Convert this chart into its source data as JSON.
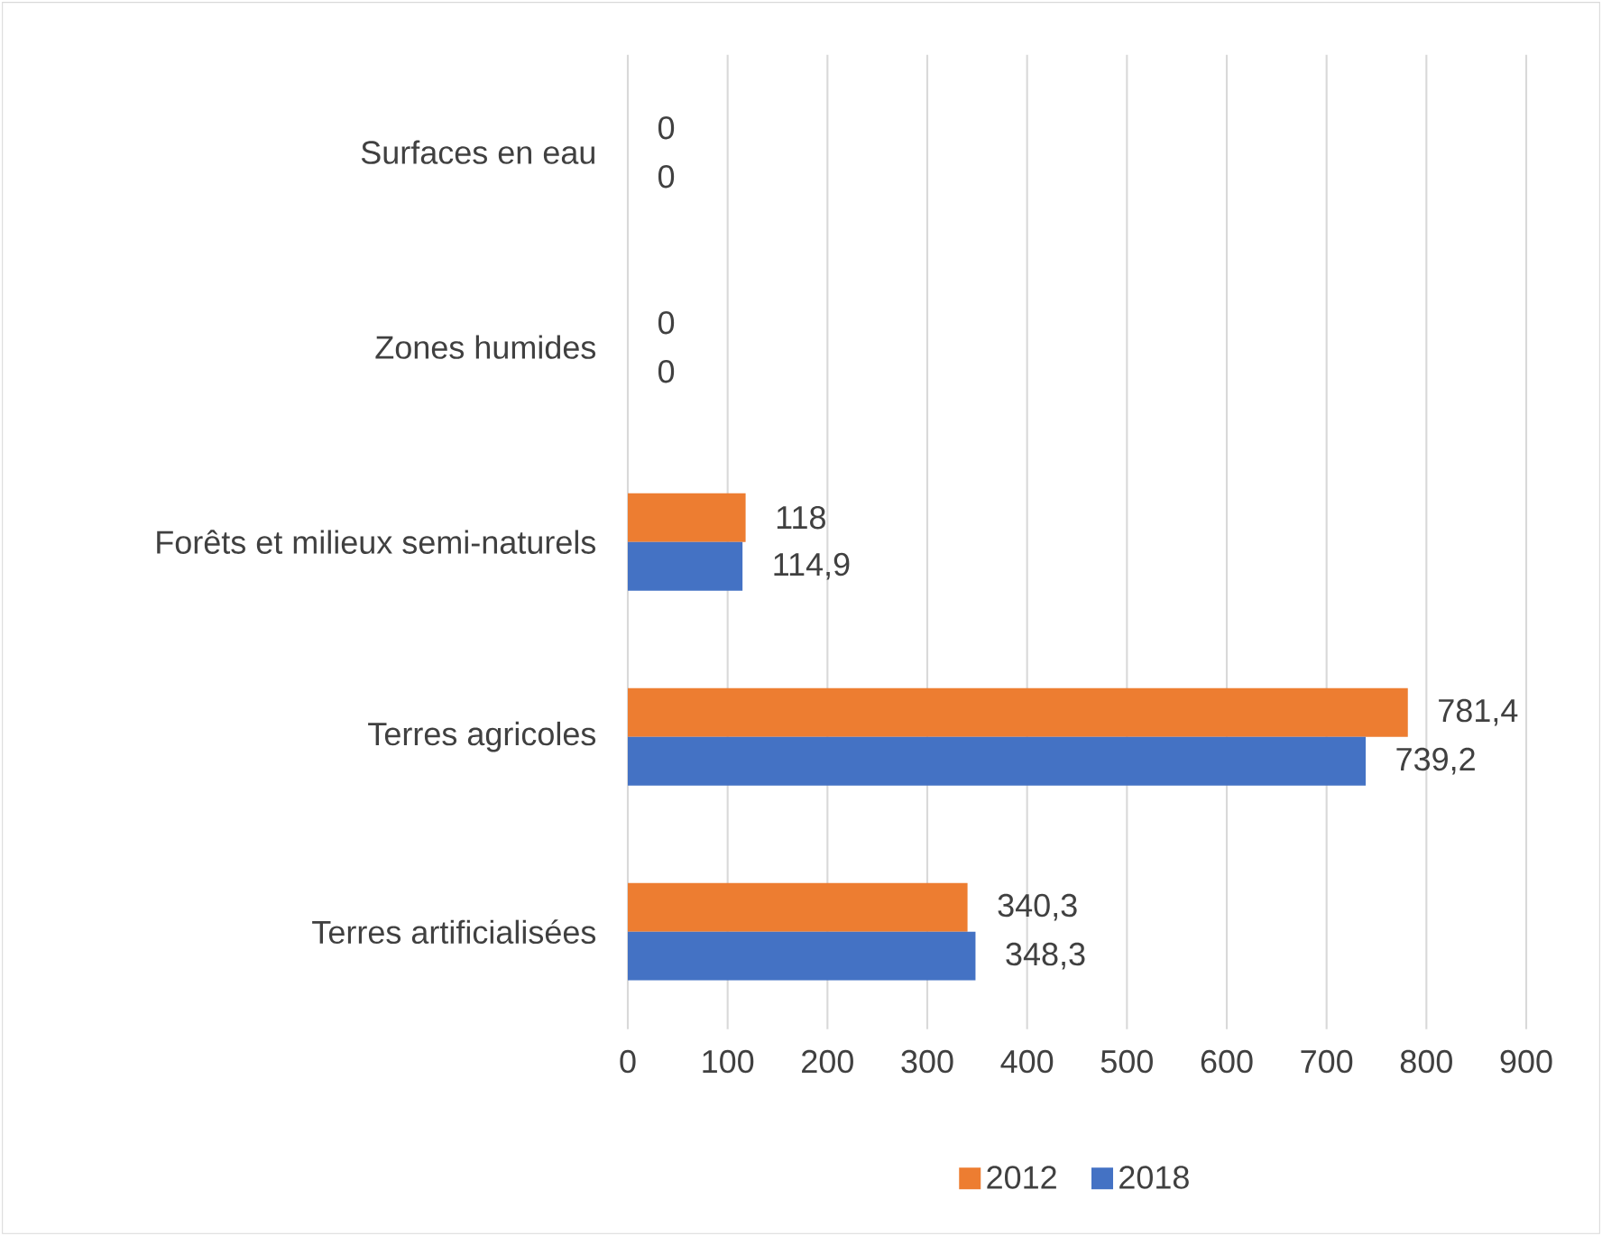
{
  "chart_data": {
    "type": "bar",
    "orientation": "horizontal",
    "categories": [
      "Surfaces en eau",
      "Zones humides",
      "Forêts et milieux semi-naturels",
      "Terres agricoles",
      "Terres artificialisées"
    ],
    "series": [
      {
        "name": "2012",
        "color": "#ed7d31",
        "values": [
          0,
          0,
          118,
          781.4,
          340.3
        ],
        "value_labels": [
          "0",
          "0",
          "118",
          "781,4",
          "340,3"
        ]
      },
      {
        "name": "2018",
        "color": "#4472c4",
        "values": [
          0,
          0,
          114.9,
          739.2,
          348.3
        ],
        "value_labels": [
          "0",
          "0",
          "114,9",
          "739,2",
          "348,3"
        ]
      }
    ],
    "xlim": [
      0,
      900
    ],
    "xticks": [
      0,
      100,
      200,
      300,
      400,
      500,
      600,
      700,
      800,
      900
    ],
    "grid": "x",
    "legend": "bottom"
  }
}
